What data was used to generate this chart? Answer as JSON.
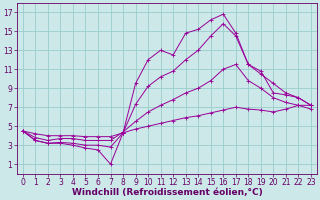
{
  "xlabel": "Windchill (Refroidissement éolien,°C)",
  "background_color": "#cce8e8",
  "grid_color": "#99cccc",
  "xlim": [
    -0.5,
    23.5
  ],
  "ylim": [
    0,
    18
  ],
  "xticks": [
    0,
    1,
    2,
    3,
    4,
    5,
    6,
    7,
    8,
    9,
    10,
    11,
    12,
    13,
    14,
    15,
    16,
    17,
    18,
    19,
    20,
    21,
    22,
    23
  ],
  "yticks": [
    1,
    3,
    5,
    7,
    9,
    11,
    13,
    15,
    17
  ],
  "lines": [
    {
      "x": [
        0,
        1,
        2,
        3,
        4,
        5,
        6,
        7,
        8,
        9,
        10,
        11,
        12,
        13,
        14,
        15,
        16,
        17,
        18,
        19,
        20,
        21,
        22,
        23
      ],
      "y": [
        4.5,
        3.5,
        3.2,
        3.2,
        3.0,
        2.7,
        2.5,
        1.0,
        4.3,
        9.5,
        12.0,
        13.0,
        12.5,
        14.8,
        15.2,
        16.2,
        16.8,
        14.8,
        11.5,
        10.8,
        8.5,
        8.3,
        8.0,
        7.2
      ]
    },
    {
      "x": [
        0,
        1,
        2,
        3,
        4,
        5,
        6,
        7,
        8,
        9,
        10,
        11,
        12,
        13,
        14,
        15,
        16,
        17,
        18,
        19,
        20,
        21,
        22,
        23
      ],
      "y": [
        4.5,
        3.5,
        3.2,
        3.3,
        3.2,
        3.0,
        3.0,
        2.8,
        4.3,
        7.3,
        9.2,
        10.2,
        10.8,
        12.0,
        13.0,
        14.5,
        15.8,
        14.5,
        11.5,
        10.5,
        9.5,
        8.5,
        8.0,
        7.2
      ]
    },
    {
      "x": [
        0,
        1,
        2,
        3,
        4,
        5,
        6,
        7,
        8,
        9,
        10,
        11,
        12,
        13,
        14,
        15,
        16,
        17,
        18,
        19,
        20,
        21,
        22,
        23
      ],
      "y": [
        4.5,
        3.8,
        3.5,
        3.7,
        3.7,
        3.5,
        3.5,
        3.5,
        4.4,
        5.5,
        6.5,
        7.2,
        7.8,
        8.5,
        9.0,
        9.8,
        11.0,
        11.5,
        9.8,
        9.0,
        8.0,
        7.5,
        7.2,
        6.8
      ]
    },
    {
      "x": [
        0,
        1,
        2,
        3,
        4,
        5,
        6,
        7,
        8,
        9,
        10,
        11,
        12,
        13,
        14,
        15,
        16,
        17,
        18,
        19,
        20,
        21,
        22,
        23
      ],
      "y": [
        4.5,
        4.2,
        4.0,
        4.0,
        4.0,
        3.9,
        3.9,
        3.9,
        4.3,
        4.7,
        5.0,
        5.3,
        5.6,
        5.9,
        6.1,
        6.4,
        6.7,
        7.0,
        6.8,
        6.7,
        6.5,
        6.8,
        7.2,
        7.2
      ]
    }
  ],
  "line_color": "#990099",
  "font_color": "#660066",
  "tick_label_size": 5.5,
  "xlabel_size": 6.5
}
